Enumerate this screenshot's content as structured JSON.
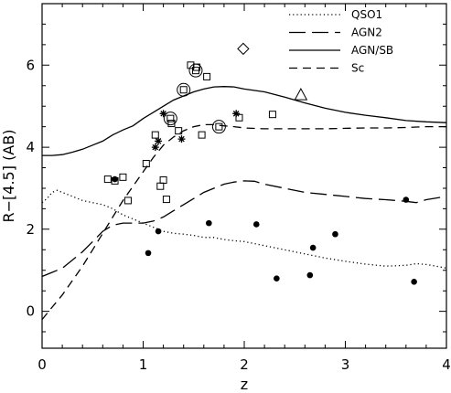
{
  "chart_data": {
    "type": "scatter",
    "xlabel": "z",
    "ylabel": "R−[4.5] (AB)",
    "xlim": [
      0,
      4
    ],
    "ylim": [
      -0.9,
      7.5
    ],
    "x_ticks": [
      0,
      1,
      2,
      3,
      4
    ],
    "x_tick_labels": [
      "0",
      "1",
      "2",
      "3",
      "4"
    ],
    "y_ticks": [
      0,
      2,
      4,
      6
    ],
    "y_tick_labels": [
      "0",
      "2",
      "4",
      "6"
    ],
    "legend_position": "top-right",
    "legend": [
      {
        "label": "QSO1",
        "style": "dotted"
      },
      {
        "label": "AGN2",
        "style": "long-dash"
      },
      {
        "label": "AGN/SB",
        "style": "solid"
      },
      {
        "label": "Sc",
        "style": "dashed"
      }
    ],
    "series": [
      {
        "name": "QSO1",
        "style": "dotted",
        "x": [
          0,
          0.05,
          0.1,
          0.15,
          0.2,
          0.3,
          0.4,
          0.5,
          0.6,
          0.7,
          0.8,
          0.9,
          1.0,
          1.1,
          1.2,
          1.3,
          1.4,
          1.5,
          1.6,
          1.7,
          1.8,
          1.9,
          2.0,
          2.2,
          2.4,
          2.6,
          2.8,
          3.0,
          3.2,
          3.4,
          3.6,
          3.7,
          3.8,
          3.9,
          4.0
        ],
        "y": [
          2.65,
          2.75,
          2.9,
          2.95,
          2.9,
          2.8,
          2.7,
          2.65,
          2.6,
          2.5,
          2.35,
          2.25,
          2.15,
          2.05,
          1.95,
          1.9,
          1.88,
          1.85,
          1.8,
          1.8,
          1.75,
          1.72,
          1.7,
          1.6,
          1.5,
          1.4,
          1.3,
          1.22,
          1.15,
          1.1,
          1.12,
          1.16,
          1.14,
          1.1,
          1.05
        ]
      },
      {
        "name": "AGN2",
        "style": "long-dash",
        "x": [
          0,
          0.1,
          0.2,
          0.3,
          0.4,
          0.5,
          0.6,
          0.7,
          0.8,
          0.9,
          1.0,
          1.1,
          1.2,
          1.3,
          1.4,
          1.5,
          1.6,
          1.7,
          1.8,
          1.9,
          2.0,
          2.1,
          2.2,
          2.4,
          2.6,
          2.8,
          3.0,
          3.2,
          3.4,
          3.6,
          3.7,
          3.8,
          4.0
        ],
        "y": [
          0.85,
          0.95,
          1.05,
          1.25,
          1.45,
          1.7,
          1.95,
          2.1,
          2.15,
          2.15,
          2.15,
          2.2,
          2.3,
          2.45,
          2.6,
          2.75,
          2.9,
          3.0,
          3.1,
          3.15,
          3.18,
          3.17,
          3.1,
          3.0,
          2.9,
          2.85,
          2.8,
          2.75,
          2.72,
          2.68,
          2.65,
          2.72,
          2.8
        ]
      },
      {
        "name": "AGN/SB",
        "style": "solid",
        "x": [
          0,
          0.1,
          0.2,
          0.3,
          0.4,
          0.5,
          0.6,
          0.7,
          0.8,
          0.9,
          1.0,
          1.1,
          1.2,
          1.3,
          1.4,
          1.5,
          1.6,
          1.7,
          1.8,
          1.9,
          2.0,
          2.2,
          2.4,
          2.6,
          2.8,
          3.0,
          3.2,
          3.4,
          3.6,
          3.8,
          4.0
        ],
        "y": [
          3.8,
          3.8,
          3.82,
          3.88,
          3.95,
          4.05,
          4.15,
          4.3,
          4.42,
          4.52,
          4.7,
          4.85,
          5.0,
          5.15,
          5.25,
          5.35,
          5.42,
          5.47,
          5.48,
          5.47,
          5.42,
          5.35,
          5.22,
          5.08,
          4.95,
          4.85,
          4.78,
          4.72,
          4.65,
          4.62,
          4.6
        ]
      },
      {
        "name": "Sc",
        "style": "dashed",
        "x": [
          0,
          0.1,
          0.2,
          0.3,
          0.4,
          0.5,
          0.6,
          0.7,
          0.8,
          0.9,
          1.0,
          1.1,
          1.2,
          1.3,
          1.4,
          1.5,
          1.6,
          1.7,
          1.8,
          1.9,
          2.0,
          2.2,
          2.4,
          2.6,
          2.8,
          3.0,
          3.2,
          3.4,
          3.6,
          3.8,
          4.0
        ],
        "y": [
          -0.2,
          0.1,
          0.4,
          0.75,
          1.1,
          1.5,
          1.9,
          2.3,
          2.7,
          3.05,
          3.4,
          3.75,
          4.05,
          4.25,
          4.4,
          4.5,
          4.55,
          4.55,
          4.52,
          4.5,
          4.47,
          4.45,
          4.45,
          4.45,
          4.45,
          4.46,
          4.47,
          4.47,
          4.48,
          4.5,
          4.5
        ]
      },
      {
        "name": "squares",
        "marker": "square",
        "x": [
          0.65,
          0.72,
          0.8,
          0.85,
          1.03,
          1.12,
          1.17,
          1.2,
          1.23,
          1.28,
          1.35,
          1.47,
          1.53,
          1.58,
          1.63,
          1.95,
          2.28
        ],
        "y": [
          3.22,
          3.18,
          3.27,
          2.7,
          3.6,
          4.3,
          3.05,
          3.2,
          2.73,
          4.58,
          4.4,
          6.0,
          5.95,
          4.3,
          5.72,
          4.72,
          4.8
        ]
      },
      {
        "name": "circled-squares",
        "marker": "circled-square",
        "x": [
          1.27,
          1.4,
          1.52,
          1.75
        ],
        "y": [
          4.7,
          5.4,
          5.87,
          4.5
        ]
      },
      {
        "name": "asterisks",
        "marker": "asterisk",
        "x": [
          1.12,
          1.15,
          1.2,
          1.38,
          1.92
        ],
        "y": [
          4.0,
          4.15,
          4.82,
          4.2,
          4.82
        ]
      },
      {
        "name": "filled-circles",
        "marker": "filled-circle",
        "x": [
          0.72,
          1.05,
          1.15,
          1.65,
          2.12,
          2.32,
          2.65,
          2.68,
          2.9,
          3.6,
          3.68
        ],
        "y": [
          3.22,
          1.42,
          1.95,
          2.15,
          2.12,
          0.8,
          0.88,
          1.55,
          1.88,
          2.72,
          0.72
        ]
      },
      {
        "name": "diamond",
        "marker": "diamond",
        "x": [
          1.99
        ],
        "y": [
          6.4
        ]
      },
      {
        "name": "triangle",
        "marker": "triangle",
        "x": [
          2.56
        ],
        "y": [
          5.27
        ]
      }
    ]
  }
}
